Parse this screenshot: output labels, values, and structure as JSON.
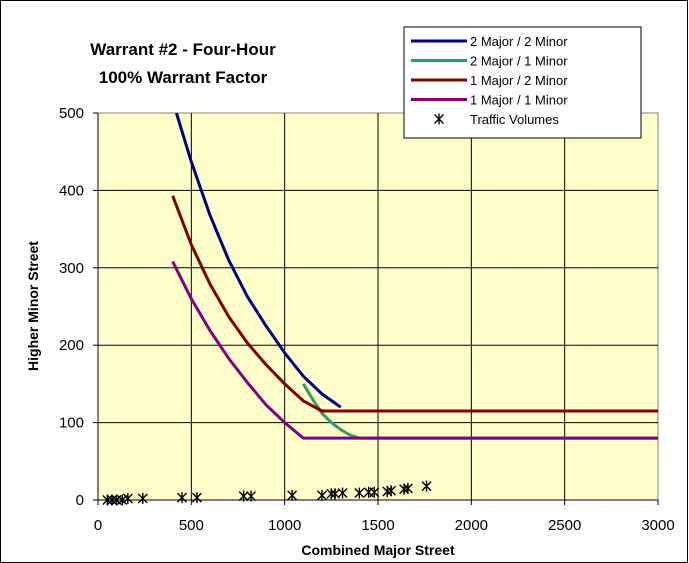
{
  "chart_data": {
    "type": "line",
    "title_line1": "Warrant #2 - Four-Hour",
    "title_line2": "100% Warrant Factor",
    "xlabel": "Combined Major Street",
    "ylabel": "Higher Minor Street",
    "xlim": [
      0,
      3000
    ],
    "ylim": [
      0,
      500
    ],
    "x_ticks": [
      0,
      500,
      1000,
      1500,
      2000,
      2500,
      3000
    ],
    "y_ticks": [
      0,
      100,
      200,
      300,
      400,
      500
    ],
    "grid": true,
    "plot_background": "#ffffcc",
    "legend_position": "top-right",
    "series": [
      {
        "name": "2 Major / 2 Minor",
        "color": "#000080",
        "points": [
          [
            420,
            500
          ],
          [
            500,
            437
          ],
          [
            600,
            368
          ],
          [
            700,
            310
          ],
          [
            800,
            263
          ],
          [
            900,
            225
          ],
          [
            1000,
            190
          ],
          [
            1100,
            160
          ],
          [
            1200,
            137
          ],
          [
            1300,
            120
          ]
        ]
      },
      {
        "name": "2 Major / 1 Minor",
        "color": "#339966",
        "points": [
          [
            1100,
            150
          ],
          [
            1150,
            130
          ],
          [
            1200,
            112
          ],
          [
            1250,
            100
          ],
          [
            1300,
            91
          ],
          [
            1350,
            84
          ],
          [
            1400,
            80
          ],
          [
            3000,
            80
          ]
        ]
      },
      {
        "name": "1 Major / 2 Minor",
        "color": "#800000",
        "points": [
          [
            400,
            393
          ],
          [
            500,
            330
          ],
          [
            600,
            279
          ],
          [
            700,
            237
          ],
          [
            800,
            203
          ],
          [
            900,
            175
          ],
          [
            1000,
            150
          ],
          [
            1100,
            128
          ],
          [
            1200,
            115
          ],
          [
            3000,
            115
          ]
        ]
      },
      {
        "name": "1 Major / 1 Minor",
        "color": "#800080",
        "points": [
          [
            400,
            308
          ],
          [
            500,
            260
          ],
          [
            600,
            219
          ],
          [
            700,
            183
          ],
          [
            800,
            152
          ],
          [
            900,
            123
          ],
          [
            1000,
            100
          ],
          [
            1100,
            80
          ],
          [
            3000,
            80
          ]
        ]
      }
    ],
    "scatter": {
      "name": "Traffic Volumes",
      "color": "#000000",
      "points": [
        [
          50,
          0
        ],
        [
          75,
          0
        ],
        [
          100,
          0
        ],
        [
          130,
          0
        ],
        [
          160,
          2
        ],
        [
          240,
          2
        ],
        [
          450,
          3
        ],
        [
          530,
          3
        ],
        [
          780,
          5
        ],
        [
          820,
          5
        ],
        [
          1040,
          6
        ],
        [
          1200,
          6
        ],
        [
          1250,
          8
        ],
        [
          1270,
          8
        ],
        [
          1310,
          9
        ],
        [
          1400,
          9
        ],
        [
          1450,
          10
        ],
        [
          1480,
          10
        ],
        [
          1550,
          11
        ],
        [
          1570,
          12
        ],
        [
          1640,
          14
        ],
        [
          1660,
          15
        ],
        [
          1760,
          18
        ]
      ]
    }
  }
}
